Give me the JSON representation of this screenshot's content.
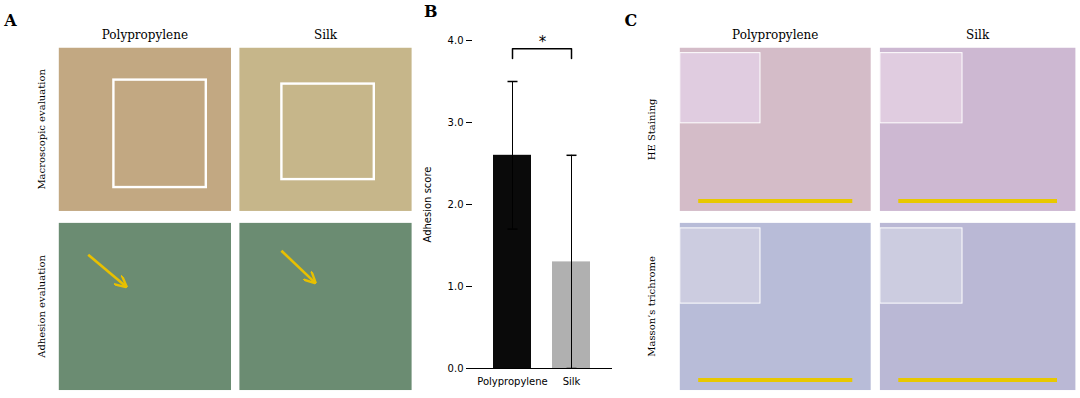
{
  "chart_data": [
    {
      "type": "image_grid",
      "title": "A",
      "columns": [
        "Polypropylene",
        "Silk"
      ],
      "rows": [
        "Macroscopic evaluation",
        "Adhesion evaluation"
      ],
      "colors": [
        "#c2a882",
        "#c6b68a",
        "#6b8c72",
        "#6b8c72"
      ],
      "color": "#e8c000"
    },
    {
      "type": "bar",
      "title": "B",
      "categories": [
        "Polypropylene",
        "Silk"
      ],
      "values": [
        2.6,
        1.3
      ],
      "errors": [
        0.9,
        1.3
      ],
      "colors": [
        "#0a0a0a",
        "#b0b0b0"
      ],
      "ylabel": "Adhesion score",
      "ylim": [
        0,
        4
      ],
      "yticks": [
        0,
        1,
        2,
        3,
        4
      ],
      "grid": false,
      "annotations": [
        {
          "text": "*",
          "x": [
            "Polypropylene",
            "Silk"
          ],
          "y": 3.9,
          "y_end": 3.78
        }
      ]
    },
    {
      "type": "image_grid",
      "title": "C",
      "columns": [
        "Polypropylene",
        "Silk"
      ],
      "rows": [
        "HE Staining",
        "Masson’s trichrome"
      ],
      "colors": [
        "#d4bcc8",
        "#cdb8d2",
        "#b8bcd8",
        "#bab8d5"
      ],
      "inset_colors": [
        "#e0cce0",
        "#e0cce0",
        "#cccce0",
        "#cccce0"
      ],
      "color": "#e8c800"
    }
  ]
}
